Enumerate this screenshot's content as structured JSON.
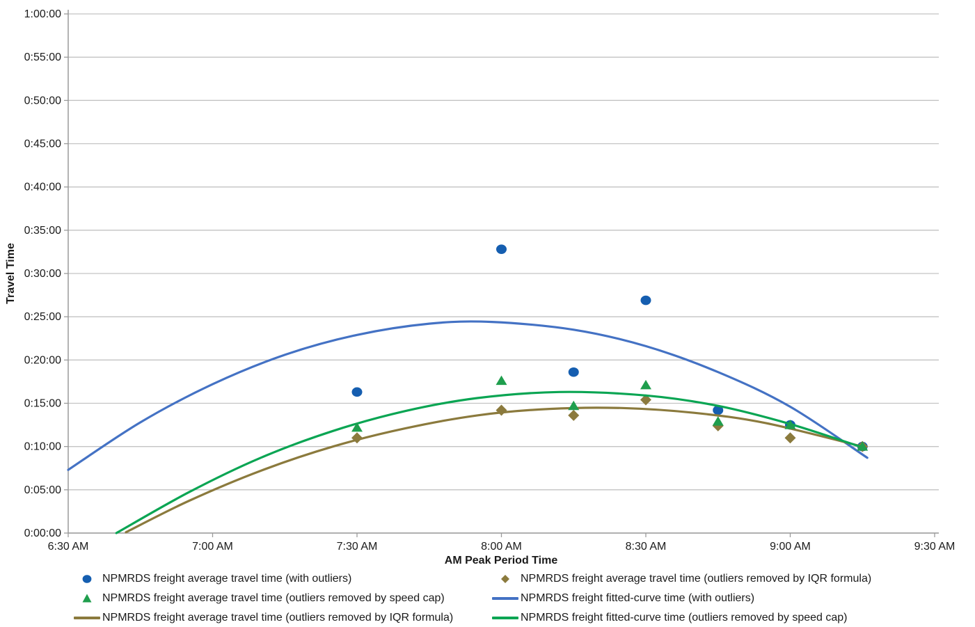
{
  "chart_data": {
    "type": "scatter",
    "title": "",
    "xlabel": "AM Peak Period Time",
    "ylabel": "Travel Time",
    "x_unit": "minutes-since-midnight",
    "y_unit": "minutes",
    "x_ticks": [
      {
        "t": 390,
        "label": "6:30 AM"
      },
      {
        "t": 420,
        "label": "7:00 AM"
      },
      {
        "t": 450,
        "label": "7:30 AM"
      },
      {
        "t": 480,
        "label": "8:00 AM"
      },
      {
        "t": 510,
        "label": "8:30 AM"
      },
      {
        "t": 540,
        "label": "9:00 AM"
      },
      {
        "t": 570,
        "label": "9:30 AM"
      }
    ],
    "y_ticks": [
      {
        "v": 0,
        "label": "0:00:00"
      },
      {
        "v": 5,
        "label": "0:05:00"
      },
      {
        "v": 10,
        "label": "0:10:00"
      },
      {
        "v": 15,
        "label": "0:15:00"
      },
      {
        "v": 20,
        "label": "0:20:00"
      },
      {
        "v": 25,
        "label": "0:25:00"
      },
      {
        "v": 30,
        "label": "0:30:00"
      },
      {
        "v": 35,
        "label": "0:35:00"
      },
      {
        "v": 40,
        "label": "0:40:00"
      },
      {
        "v": 45,
        "label": "0:45:00"
      },
      {
        "v": 50,
        "label": "0:50:00"
      },
      {
        "v": 55,
        "label": "0:55:00"
      },
      {
        "v": 60,
        "label": "1:00:00"
      }
    ],
    "x_range": [
      390,
      570
    ],
    "y_range": [
      0,
      60
    ],
    "grid": true,
    "legend_position": "bottom",
    "colors": {
      "grid": "#c3c3c3",
      "axis": "#9a9a9a",
      "tick_text": "#1a1a1a"
    },
    "series": [
      {
        "name": "NPMRDS freight average travel time (with outliers)",
        "kind": "scatter",
        "marker": "circle",
        "color": "#155eb0",
        "points": [
          [
            450,
            16.3
          ],
          [
            480,
            32.8
          ],
          [
            495,
            18.6
          ],
          [
            510,
            26.9
          ],
          [
            525,
            14.2
          ],
          [
            540,
            12.5
          ],
          [
            555,
            10.0
          ]
        ]
      },
      {
        "name": "NPMRDS freight fitted-curve time (with outliers)",
        "kind": "line",
        "color": "#4472c4",
        "points": [
          [
            390,
            7.3
          ],
          [
            405,
            12.8
          ],
          [
            420,
            17.2
          ],
          [
            435,
            20.6
          ],
          [
            450,
            22.9
          ],
          [
            465,
            24.2
          ],
          [
            478,
            24.4
          ],
          [
            495,
            23.5
          ],
          [
            510,
            21.6
          ],
          [
            525,
            18.6
          ],
          [
            540,
            14.6
          ],
          [
            556,
            8.7
          ]
        ]
      },
      {
        "name": "NPMRDS freight average travel time (outliers removed by IQR formula)",
        "kind": "line",
        "color": "#8b7a3d",
        "points": [
          [
            402,
            0.1
          ],
          [
            415,
            3.7
          ],
          [
            430,
            7.2
          ],
          [
            445,
            10.0
          ],
          [
            460,
            12.1
          ],
          [
            475,
            13.6
          ],
          [
            490,
            14.35
          ],
          [
            505,
            14.45
          ],
          [
            520,
            13.9
          ],
          [
            535,
            12.7
          ],
          [
            555,
            10.0
          ]
        ]
      },
      {
        "name": "NPMRDS freight average travel time (outliers removed by IQR formula)",
        "kind": "scatter",
        "marker": "diamond",
        "color": "#8b7a3d",
        "points": [
          [
            450,
            11.0
          ],
          [
            480,
            14.2
          ],
          [
            495,
            13.6
          ],
          [
            510,
            15.4
          ],
          [
            525,
            12.4
          ],
          [
            540,
            11.0
          ],
          [
            555,
            10.0
          ]
        ]
      },
      {
        "name": "NPMRDS freight fitted-curve time (outliers removed by speed cap)",
        "kind": "line",
        "color": "#0aa553",
        "points": [
          [
            400,
            0.0
          ],
          [
            415,
            4.7
          ],
          [
            430,
            8.7
          ],
          [
            445,
            11.8
          ],
          [
            460,
            14.1
          ],
          [
            475,
            15.6
          ],
          [
            492,
            16.3
          ],
          [
            510,
            15.9
          ],
          [
            525,
            14.7
          ],
          [
            540,
            12.6
          ],
          [
            555,
            9.9
          ]
        ]
      },
      {
        "name": "NPMRDS freight average travel time (outliers removed by speed cap)",
        "kind": "scatter",
        "marker": "triangle",
        "color": "#1f9e4d",
        "points": [
          [
            450,
            12.2
          ],
          [
            480,
            17.6
          ],
          [
            495,
            14.7
          ],
          [
            510,
            17.1
          ],
          [
            525,
            12.9
          ],
          [
            540,
            12.5
          ],
          [
            555,
            10.0
          ]
        ]
      }
    ]
  },
  "legend": {
    "items": [
      {
        "marker": "circle",
        "color": "#155eb0",
        "label": "NPMRDS freight average travel time (with outliers)"
      },
      {
        "marker": "diamond",
        "color": "#8b7a3d",
        "label": "NPMRDS freight average travel time (outliers removed by IQR formula)"
      },
      {
        "marker": "triangle",
        "color": "#1f9e4d",
        "label": "NPMRDS freight average travel time (outliers removed by speed cap)"
      },
      {
        "marker": "line",
        "color": "#4472c4",
        "label": "NPMRDS freight fitted-curve time (with outliers)"
      },
      {
        "marker": "line",
        "color": "#8b7a3d",
        "label": "NPMRDS freight average travel time (outliers removed by IQR formula)"
      },
      {
        "marker": "line",
        "color": "#0aa553",
        "label": "NPMRDS freight fitted-curve time (outliers removed by speed cap)"
      }
    ]
  }
}
